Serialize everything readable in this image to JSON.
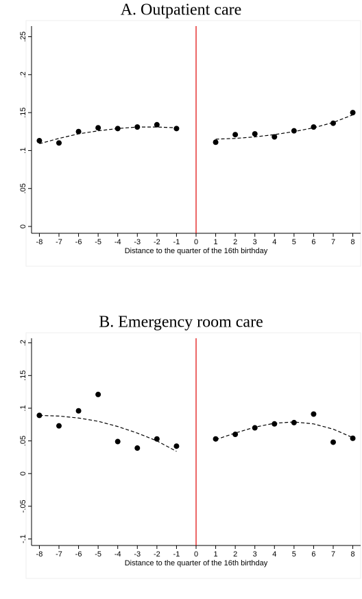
{
  "chart_data": [
    {
      "type": "scatter",
      "title": "A. Outpatient care",
      "x_label": "Distance to the quarter of the 16th birthday",
      "x": [
        -8,
        -7,
        -6,
        -5,
        -4,
        -3,
        -2,
        -1,
        0,
        1,
        2,
        3,
        4,
        5,
        6,
        7,
        8
      ],
      "series": [
        {
          "color": "#000000",
          "style": "dots",
          "values": [
            0.113,
            0.11,
            0.125,
            0.13,
            0.129,
            0.131,
            0.134,
            0.129,
            null,
            0.111,
            0.121,
            0.122,
            0.118,
            0.126,
            0.131,
            0.136,
            0.15
          ]
        },
        {
          "color": "#000000",
          "style": "dashed",
          "values": [
            0.109,
            0.116,
            0.122,
            0.126,
            0.129,
            0.131,
            0.131,
            0.13,
            null,
            0.115,
            0.116,
            0.118,
            0.121,
            0.125,
            0.13,
            0.137,
            0.147
          ]
        }
      ],
      "cutoff": {
        "x": 0,
        "color": "#e00000"
      },
      "xlim": [
        -8.4,
        8.4
      ],
      "xticks": [
        -8,
        -7,
        -6,
        -5,
        -4,
        -3,
        -2,
        -1,
        0,
        1,
        2,
        3,
        4,
        5,
        6,
        7,
        8
      ],
      "ylim": [
        -0.009,
        0.264
      ],
      "yticks": [
        0,
        {
          "value": 0.05,
          "label": ".05"
        },
        {
          "value": 0.1,
          "label": ".1"
        },
        {
          "value": 0.15,
          "label": ".15"
        },
        {
          "value": 0.2,
          "label": ".2"
        },
        {
          "value": 0.25,
          "label": ".25"
        }
      ]
    },
    {
      "type": "scatter",
      "title": "B. Emergency room care",
      "x_label": "Distance to the quarter of the 16th birthday",
      "x": [
        -8,
        -7,
        -6,
        -5,
        -4,
        -3,
        -2,
        -1,
        0,
        1,
        2,
        3,
        4,
        5,
        6,
        7,
        8
      ],
      "series": [
        {
          "color": "#000000",
          "style": "dots",
          "values": [
            0.089,
            0.073,
            0.096,
            0.121,
            0.049,
            0.039,
            0.053,
            0.042,
            null,
            0.053,
            0.06,
            0.07,
            0.076,
            0.078,
            0.091,
            0.048,
            0.054
          ]
        },
        {
          "color": "#000000",
          "style": "dashed",
          "values": [
            0.089,
            0.088,
            0.085,
            0.08,
            0.072,
            0.062,
            0.05,
            0.034,
            null,
            0.052,
            0.062,
            0.071,
            0.077,
            0.079,
            0.076,
            0.068,
            0.055
          ]
        }
      ],
      "cutoff": {
        "x": 0,
        "color": "#e00000"
      },
      "xlim": [
        -8.4,
        8.4
      ],
      "xticks": [
        -8,
        -7,
        -6,
        -5,
        -4,
        -3,
        -2,
        -1,
        0,
        1,
        2,
        3,
        4,
        5,
        6,
        7,
        8
      ],
      "ylim": [
        -0.11,
        0.207
      ],
      "yticks": [
        {
          "value": -0.1,
          "label": "-.1"
        },
        {
          "value": -0.05,
          "label": "-.05"
        },
        0,
        {
          "value": 0.05,
          "label": ".05"
        },
        {
          "value": 0.1,
          "label": ".1"
        },
        {
          "value": 0.15,
          "label": ".15"
        },
        {
          "value": 0.2,
          "label": ".2"
        }
      ]
    }
  ]
}
